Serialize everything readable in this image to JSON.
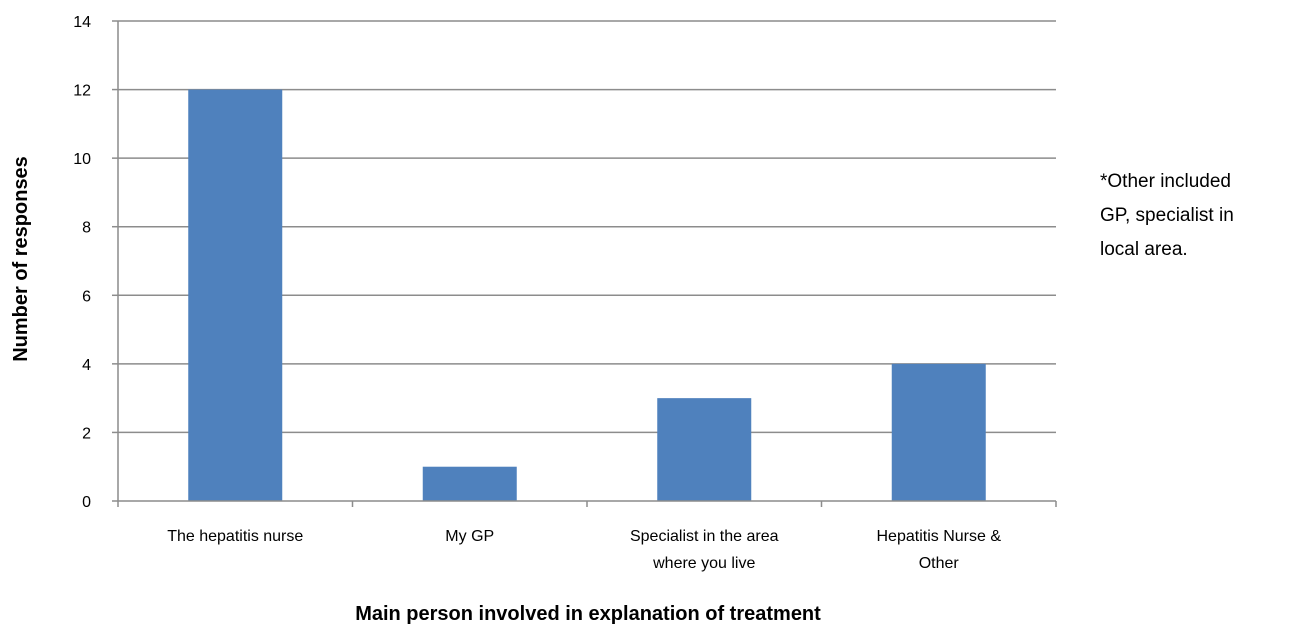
{
  "chart_data": {
    "type": "bar",
    "categories": [
      [
        "The hepatitis nurse"
      ],
      [
        "My GP"
      ],
      [
        "Specialist in the area",
        "where you live"
      ],
      [
        "Hepatitis Nurse &",
        "Other"
      ]
    ],
    "values": [
      12,
      1,
      3,
      4
    ],
    "xlabel": "Main person involved in explanation of treatment",
    "ylabel": "Number of responses",
    "ylim": [
      0,
      14
    ],
    "yticks": [
      0,
      2,
      4,
      6,
      8,
      10,
      12,
      14
    ],
    "grid": true,
    "bar_color": "#4f81bd",
    "grid_color": "#8c8c8c",
    "annotation": [
      "*Other included",
      "GP, specialist in",
      "local area."
    ]
  }
}
